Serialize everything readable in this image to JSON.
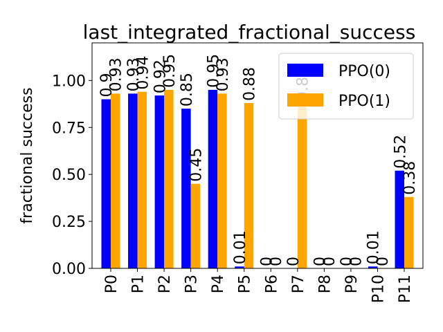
{
  "chart_data": {
    "type": "bar",
    "title": "last_integrated_fractional_success",
    "xlabel": "",
    "ylabel": "fractional success",
    "categories": [
      "P0",
      "P1",
      "P2",
      "P3",
      "P4",
      "P5",
      "P6",
      "P7",
      "P8",
      "P9",
      "P10",
      "P11"
    ],
    "series": [
      {
        "name": "PPO(0)",
        "color": "#0000ff",
        "values": [
          0.9,
          0.93,
          0.92,
          0.85,
          0.95,
          0.01,
          0.0,
          0.0,
          0.0,
          0.0,
          0.01,
          0.52
        ]
      },
      {
        "name": "PPO(1)",
        "color": "#ffa500",
        "values": [
          0.93,
          0.94,
          0.95,
          0.45,
          0.93,
          0.88,
          0.0,
          0.88,
          0.0,
          0.0,
          0.0,
          0.38
        ]
      }
    ],
    "ylim": [
      0,
      1.2
    ],
    "yticks": [
      0.0,
      0.25,
      0.5,
      0.75,
      1.0
    ],
    "ytick_labels": [
      "0.00",
      "0.25",
      "0.50",
      "0.75",
      "1.00"
    ],
    "legend_position": "top-right",
    "grid": false,
    "data_labels": true
  }
}
